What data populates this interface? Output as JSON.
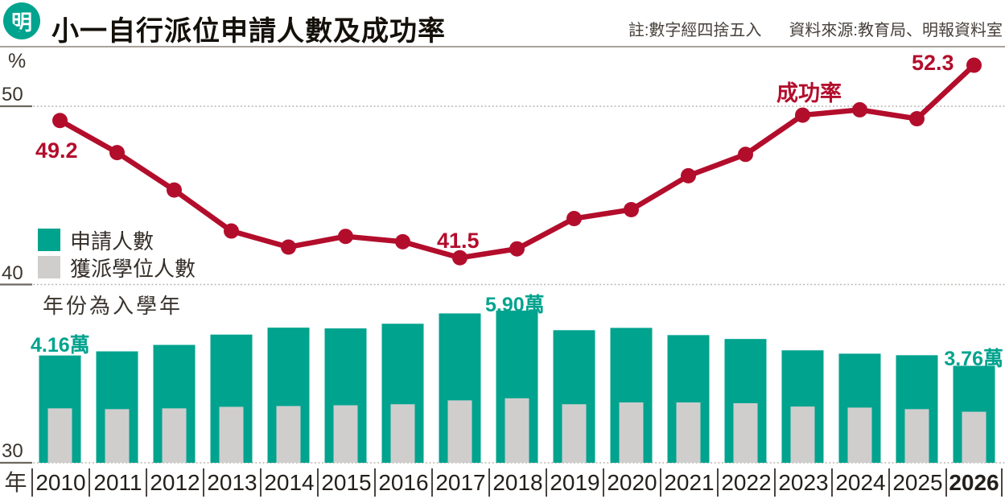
{
  "header": {
    "logo_char": "明",
    "title": "小一自行派位申請人數及成功率",
    "note": "註:數字經四捨五入",
    "source": "資料來源:教育局、明報資料室"
  },
  "axes": {
    "percent_symbol": "%",
    "yticks": [
      "50",
      "40",
      "30"
    ],
    "year_axis_label": "年"
  },
  "legend": {
    "applications_label": "申請人數",
    "allocated_label": "獲派學位人數",
    "note": "年份為入學年"
  },
  "annotations": {
    "rate_2010": "49.2",
    "rate_2017": "41.5",
    "rate_2026": "52.3",
    "line_label": "成功率",
    "applications_2010": "4.16萬",
    "applications_2018": "5.90萬",
    "applications_2026": "3.76萬"
  },
  "colors": {
    "teal": "#00a38e",
    "bar_gray": "#cfcecd",
    "red": "#b30d2c",
    "grid": "#b5afa9",
    "tick_solid": "#6e6861"
  },
  "chart_data": {
    "type": "combo (bar + line)",
    "title": "小一自行派位申請人數及成功率",
    "x_note": "年份為入學年",
    "categories": [
      2010,
      2011,
      2012,
      2013,
      2014,
      2015,
      2016,
      2017,
      2018,
      2019,
      2020,
      2021,
      2022,
      2023,
      2024,
      2025,
      2026
    ],
    "series": [
      {
        "name": "成功率",
        "chart": "line",
        "unit": "%",
        "color": "#b30d2c",
        "values": [
          49.2,
          47.4,
          45.3,
          43.0,
          42.1,
          42.7,
          42.4,
          41.5,
          42.0,
          43.7,
          44.2,
          46.1,
          47.3,
          49.5,
          49.8,
          49.3,
          52.3
        ]
      },
      {
        "name": "申請人數",
        "chart": "bar",
        "unit": "萬人",
        "color": "#00a38e",
        "values": [
          4.16,
          4.32,
          4.57,
          4.97,
          5.24,
          5.21,
          5.39,
          5.79,
          5.9,
          5.14,
          5.23,
          4.95,
          4.8,
          4.36,
          4.23,
          4.17,
          3.76
        ]
      },
      {
        "name": "獲派學位人數",
        "chart": "bar",
        "unit": "萬人",
        "color": "#cfcecd",
        "values": [
          2.11,
          2.08,
          2.11,
          2.17,
          2.2,
          2.23,
          2.27,
          2.42,
          2.5,
          2.27,
          2.34,
          2.34,
          2.31,
          2.18,
          2.14,
          2.08,
          1.98
        ]
      }
    ],
    "rate_axis": {
      "label": "%",
      "ticks": [
        50,
        40,
        30
      ],
      "range": [
        30,
        53
      ]
    },
    "grid": "dotted horizontal lines at 50/40/30",
    "legend_position": "middle-left",
    "highlighted_values": {
      "2010": 49.2,
      "2017": 41.5,
      "2026": 52.3
    }
  }
}
